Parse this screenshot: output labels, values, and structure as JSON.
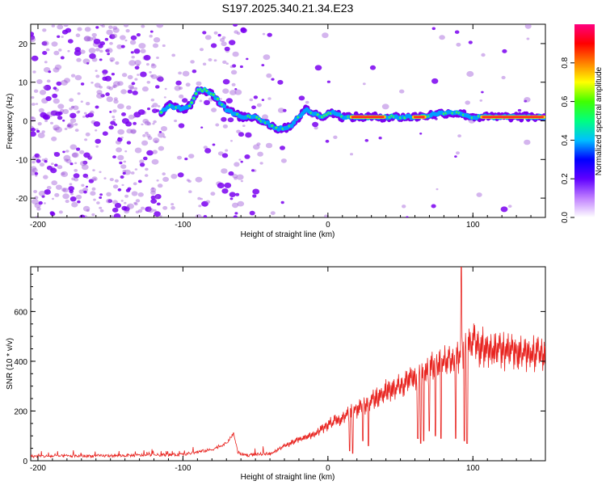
{
  "title": "S197.2025.340.21.34.E23",
  "colors": {
    "signal_line": "#e8231f",
    "scatter_low": "#a05bd9",
    "scatter_mid": "#7a00f0",
    "ridge": "#00a0ff",
    "hot": "#ff2020",
    "background": "#ffffff"
  },
  "chart_data": [
    {
      "type": "heatmap",
      "xlabel": "Height of straight line (km)",
      "ylabel": "Frequency (Hz)",
      "xlim": [
        -205,
        150
      ],
      "ylim": [
        -25,
        25
      ],
      "xticks": [
        -200,
        -100,
        0,
        100
      ],
      "yticks": [
        -20,
        -10,
        0,
        10,
        20
      ],
      "ridge": {
        "x": [
          -115,
          -110,
          -100,
          -95,
          -90,
          -85,
          -80,
          -75,
          -70,
          -60,
          -50,
          -40,
          -35,
          -30,
          -25,
          -20,
          -15,
          -10,
          -5,
          0,
          5,
          10,
          20,
          40,
          60,
          80,
          90,
          100,
          120,
          150
        ],
        "y": [
          2,
          4,
          3,
          4,
          8,
          8,
          7,
          5,
          3,
          1,
          1,
          -1,
          -2,
          -2,
          -1,
          1,
          3,
          2,
          1,
          2,
          2,
          1,
          1,
          1,
          1,
          2,
          2,
          1,
          1,
          1
        ]
      },
      "hot_segments": [
        {
          "x_start": 15,
          "x_end": 40,
          "y": 1
        },
        {
          "x_start": 58,
          "x_end": 68,
          "y": 1
        },
        {
          "x_start": 105,
          "x_end": 150,
          "y": 1
        }
      ]
    },
    {
      "type": "colorbar",
      "label": "Normalized spectral amplitude",
      "range": [
        0,
        1
      ],
      "ticks": [
        "0.0",
        "0.2",
        "0.4",
        "0.6",
        "0.8"
      ],
      "stops": [
        "#ffffff",
        "#c080ff",
        "#6000ff",
        "#0000ff",
        "#00c0ff",
        "#00ff80",
        "#40ff00",
        "#ffff00",
        "#ff8000",
        "#ff0000",
        "#ff0080"
      ]
    },
    {
      "type": "line",
      "xlabel": "Height of straight line (km)",
      "ylabel": "SNR (10 * v/v)",
      "xlim": [
        -205,
        150
      ],
      "ylim": [
        0,
        780
      ],
      "xticks": [
        -200,
        -100,
        0,
        100
      ],
      "yticks": [
        0,
        200,
        400,
        600
      ],
      "series": [
        {
          "name": "SNR",
          "x": [
            -205,
            -150,
            -100,
            -80,
            -70,
            -65,
            -62,
            -55,
            -40,
            -30,
            -20,
            -10,
            0,
            10,
            20,
            30,
            40,
            50,
            60,
            70,
            80,
            90,
            95,
            100,
            110,
            120,
            130,
            150
          ],
          "y": [
            18,
            20,
            25,
            45,
            70,
            110,
            30,
            22,
            30,
            70,
            100,
            120,
            170,
            200,
            240,
            280,
            320,
            350,
            390,
            420,
            460,
            480,
            520,
            560,
            510,
            520,
            500,
            500
          ]
        }
      ],
      "spikes": [
        {
          "x": 15,
          "y": 40
        },
        {
          "x": 17,
          "y": 30
        },
        {
          "x": 24,
          "y": 80
        },
        {
          "x": 28,
          "y": 60
        },
        {
          "x": 62,
          "y": 90
        },
        {
          "x": 64,
          "y": 70
        },
        {
          "x": 66,
          "y": 80
        },
        {
          "x": 70,
          "y": 120
        },
        {
          "x": 74,
          "y": 100
        },
        {
          "x": 78,
          "y": 90
        },
        {
          "x": 88,
          "y": 90
        },
        {
          "x": 92,
          "y": 780
        },
        {
          "x": 94,
          "y": 80
        },
        {
          "x": 96,
          "y": 70
        }
      ]
    }
  ]
}
